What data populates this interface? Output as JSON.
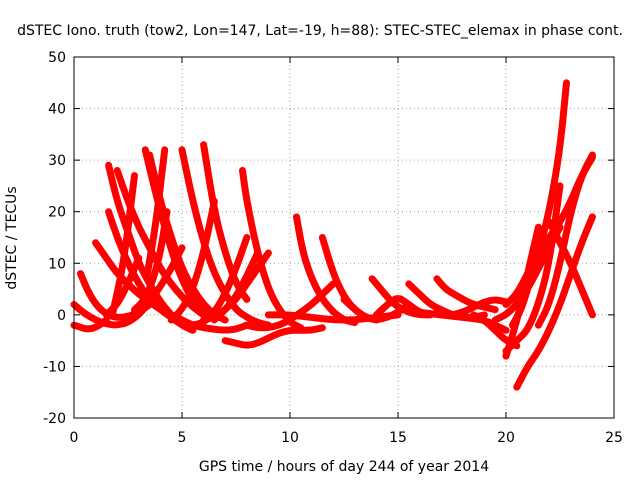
{
  "chart_data": {
    "type": "scatter",
    "title": "dSTEC Iono. truth (tow2, Lon=147, Lat=-19, h=88): STEC-STEC_elemax in phase cont.",
    "xlabel": "GPS time / hours of day 244 of year 2014",
    "ylabel": "dSTEC  / TECUs",
    "xlim": [
      0,
      25
    ],
    "ylim": [
      -20,
      50
    ],
    "xticks": [
      0,
      5,
      10,
      15,
      20,
      25
    ],
    "yticks": [
      -20,
      -10,
      0,
      10,
      20,
      30,
      40,
      50
    ],
    "grid": true,
    "legend": "none",
    "marker": "+",
    "color": "#ff0000",
    "series": [
      {
        "x": [
          0.0,
          0.5,
          1.0,
          1.5,
          2.0,
          2.5,
          3.0,
          3.5,
          4.0,
          4.5,
          5.0
        ],
        "y": [
          2.0,
          0.2,
          -1.0,
          -1.8,
          -2.0,
          -1.5,
          0.0,
          2.5,
          5.5,
          9.0,
          13.0
        ]
      },
      {
        "x": [
          0.0,
          0.3,
          0.6,
          1.0,
          1.5
        ],
        "y": [
          -2.0,
          -2.4,
          -2.8,
          -2.5,
          -1.0
        ]
      },
      {
        "x": [
          0.3,
          0.7,
          1.2,
          1.8,
          2.4,
          3.0,
          3.5
        ],
        "y": [
          8.0,
          4.0,
          1.0,
          -0.5,
          -0.5,
          0.5,
          2.0
        ]
      },
      {
        "x": [
          1.0,
          1.5,
          2.0,
          2.5,
          3.0,
          3.5,
          4.0,
          4.5,
          5.0
        ],
        "y": [
          14.0,
          11.0,
          8.0,
          6.0,
          4.0,
          2.5,
          1.0,
          0.0,
          -1.0
        ]
      },
      {
        "x": [
          1.6,
          2.0,
          2.5,
          3.0,
          3.5,
          4.0,
          4.5,
          5.0,
          5.5
        ],
        "y": [
          20.0,
          15.0,
          10.0,
          6.0,
          3.0,
          1.0,
          -0.5,
          -2.0,
          -3.0
        ]
      },
      {
        "x": [
          1.6,
          2.0,
          2.5,
          3.0,
          3.5,
          4.0,
          4.5
        ],
        "y": [
          29.0,
          22.0,
          16.0,
          10.0,
          6.0,
          2.5,
          0.0
        ]
      },
      {
        "x": [
          2.0,
          2.5,
          3.0,
          3.5,
          4.0,
          4.5,
          5.0,
          5.5,
          6.0
        ],
        "y": [
          28.0,
          22.0,
          17.0,
          13.0,
          9.0,
          6.0,
          3.5,
          1.5,
          0.0
        ]
      },
      {
        "x": [
          1.5,
          2.0,
          2.5,
          3.0
        ],
        "y": [
          0.0,
          2.0,
          6.0,
          11.0
        ]
      },
      {
        "x": [
          1.8,
          2.3,
          2.8
        ],
        "y": [
          0.5,
          10.0,
          27.0
        ]
      },
      {
        "x": [
          3.3,
          3.7,
          4.2,
          4.7,
          5.2,
          5.7,
          6.2
        ],
        "y": [
          32.0,
          25.0,
          17.0,
          10.0,
          5.0,
          1.5,
          -0.5
        ]
      },
      {
        "x": [
          3.5,
          4.0,
          4.5,
          5.0,
          5.5,
          6.0,
          6.5,
          7.0
        ],
        "y": [
          31.0,
          22.0,
          15.0,
          9.0,
          5.0,
          2.0,
          0.0,
          -1.0
        ]
      },
      {
        "x": [
          3.4,
          3.8,
          4.2
        ],
        "y": [
          8.0,
          18.0,
          32.0
        ]
      },
      {
        "x": [
          2.8,
          3.2,
          3.6,
          4.0,
          4.3
        ],
        "y": [
          1.0,
          2.5,
          6.0,
          12.0,
          20.0
        ]
      },
      {
        "x": [
          4.5,
          5.0,
          5.5,
          6.0,
          6.5
        ],
        "y": [
          -1.0,
          1.0,
          5.0,
          12.0,
          22.0
        ]
      },
      {
        "x": [
          5.0,
          5.5,
          6.0,
          6.5,
          7.0,
          7.5,
          8.0,
          8.5,
          9.0
        ],
        "y": [
          32.0,
          22.0,
          14.0,
          8.0,
          4.0,
          1.0,
          -0.5,
          -1.5,
          -2.0
        ]
      },
      {
        "x": [
          6.0,
          6.5,
          7.0,
          7.5,
          8.0
        ],
        "y": [
          33.0,
          20.0,
          12.0,
          6.0,
          3.0
        ]
      },
      {
        "x": [
          4.5,
          5.0,
          5.5,
          6.0,
          6.5,
          7.0,
          7.5,
          8.0
        ],
        "y": [
          0.0,
          -1.0,
          -2.0,
          -2.5,
          -2.8,
          -3.0,
          -2.8,
          -2.0
        ]
      },
      {
        "x": [
          5.5,
          6.0,
          6.5,
          7.0,
          7.5,
          8.0
        ],
        "y": [
          -2.0,
          -1.5,
          0.5,
          4.0,
          9.0,
          15.0
        ]
      },
      {
        "x": [
          6.0,
          6.5,
          7.0,
          7.5,
          8.0,
          8.5,
          9.0
        ],
        "y": [
          -1.0,
          -0.5,
          1.0,
          3.0,
          6.0,
          9.0,
          12.0
        ]
      },
      {
        "x": [
          7.8,
          8.0,
          8.5,
          9.0,
          9.5,
          10.0,
          10.5
        ],
        "y": [
          28.0,
          22.0,
          12.0,
          5.0,
          1.0,
          -1.5,
          -2.5
        ]
      },
      {
        "x": [
          7.0,
          7.5,
          8.0,
          8.5,
          9.0,
          9.5,
          10.0,
          10.5,
          11.0,
          11.5
        ],
        "y": [
          -5.0,
          -5.5,
          -6.0,
          -5.5,
          -4.5,
          -3.5,
          -3.0,
          -3.0,
          -3.0,
          -2.5
        ]
      },
      {
        "x": [
          6.5,
          7.0,
          7.5,
          8.0,
          8.5
        ],
        "y": [
          -1.0,
          1.0,
          3.5,
          7.5,
          12.0
        ]
      },
      {
        "x": [
          10.3,
          10.6,
          11.0,
          11.5,
          12.0,
          12.5,
          13.0
        ],
        "y": [
          19.0,
          12.0,
          7.0,
          3.0,
          0.5,
          -1.0,
          -1.5
        ]
      },
      {
        "x": [
          11.5,
          12.0,
          12.5,
          13.0,
          13.5,
          14.0
        ],
        "y": [
          15.0,
          8.0,
          3.5,
          1.0,
          -0.5,
          -1.0
        ]
      },
      {
        "x": [
          8.0,
          8.5,
          9.0,
          9.5,
          10.0,
          10.5,
          11.0,
          11.5,
          12.0
        ],
        "y": [
          -2.0,
          -2.5,
          -2.5,
          -2.0,
          -1.0,
          0.5,
          2.0,
          4.0,
          6.0
        ]
      },
      {
        "x": [
          9.0,
          10.0,
          11.0,
          12.0,
          13.0,
          14.0,
          15.0
        ],
        "y": [
          0.0,
          0.0,
          -0.5,
          -1.0,
          -1.0,
          -0.5,
          0.0
        ]
      },
      {
        "x": [
          12.5,
          13.0,
          13.5,
          14.0,
          14.5,
          15.0,
          15.5
        ],
        "y": [
          3.0,
          1.0,
          -0.5,
          -1.0,
          -0.5,
          0.5,
          2.0
        ]
      },
      {
        "x": [
          13.8,
          14.2,
          14.6,
          15.0,
          15.5,
          16.0,
          16.5
        ],
        "y": [
          7.0,
          5.0,
          3.0,
          1.5,
          0.5,
          0.0,
          0.0
        ]
      },
      {
        "x": [
          15.5,
          16.0,
          16.5,
          17.0,
          17.5,
          18.0,
          18.5,
          19.0
        ],
        "y": [
          6.0,
          4.0,
          2.0,
          1.0,
          0.0,
          -0.5,
          -0.5,
          0.0
        ]
      },
      {
        "x": [
          16.8,
          17.2,
          17.6,
          18.0,
          18.5,
          19.0,
          19.5
        ],
        "y": [
          7.0,
          5.0,
          4.0,
          3.0,
          2.0,
          1.5,
          1.0
        ]
      },
      {
        "x": [
          14.0,
          14.5,
          15.0,
          15.5,
          16.0,
          16.5,
          17.0
        ],
        "y": [
          0.0,
          2.0,
          3.5,
          2.0,
          0.5,
          0.0,
          0.5
        ]
      },
      {
        "x": [
          16.0,
          17.0,
          18.0,
          19.0,
          19.5,
          20.0
        ],
        "y": [
          0.5,
          0.0,
          -0.5,
          -1.0,
          -2.0,
          -3.0
        ]
      },
      {
        "x": [
          17.5,
          18.0,
          18.5,
          19.0,
          19.5,
          20.0
        ],
        "y": [
          0.0,
          0.5,
          1.5,
          2.5,
          3.0,
          2.5
        ]
      },
      {
        "x": [
          18.5,
          19.0,
          19.5,
          20.0,
          20.5
        ],
        "y": [
          0.0,
          -1.0,
          -3.0,
          -5.0,
          -6.0
        ]
      },
      {
        "x": [
          20.0,
          20.3,
          20.7,
          21.0,
          21.5
        ],
        "y": [
          -8.0,
          -4.0,
          2.0,
          8.0,
          17.0
        ]
      },
      {
        "x": [
          20.3,
          20.7,
          21.0,
          21.5,
          22.0,
          22.5,
          22.8
        ],
        "y": [
          -2.0,
          1.0,
          5.0,
          12.0,
          20.0,
          32.0,
          45.0
        ]
      },
      {
        "x": [
          20.5,
          21.0,
          21.5,
          22.0,
          22.5,
          23.0,
          23.5,
          24.0
        ],
        "y": [
          -14.0,
          -10.0,
          -7.0,
          -3.0,
          2.0,
          8.0,
          14.0,
          19.0
        ]
      },
      {
        "x": [
          20.0,
          20.5,
          21.0,
          21.5,
          22.0,
          22.5
        ],
        "y": [
          -7.0,
          -5.0,
          -3.0,
          2.0,
          10.0,
          25.0
        ]
      },
      {
        "x": [
          21.5,
          22.0,
          22.5,
          23.0,
          23.5,
          24.0
        ],
        "y": [
          -2.0,
          2.0,
          10.0,
          20.0,
          27.0,
          31.0
        ]
      },
      {
        "x": [
          20.0,
          20.5,
          21.0,
          21.5,
          22.0,
          22.5,
          23.0,
          23.5,
          24.0
        ],
        "y": [
          2.0,
          4.0,
          8.0,
          12.0,
          15.0,
          18.0,
          22.0,
          27.0,
          30.5
        ]
      },
      {
        "x": [
          22.0,
          22.5,
          23.0,
          23.5,
          24.0
        ],
        "y": [
          18.0,
          14.0,
          10.0,
          5.0,
          0.0
        ]
      },
      {
        "x": [
          19.5,
          20.0,
          20.5,
          21.0,
          21.5,
          22.0,
          22.5
        ],
        "y": [
          -1.0,
          0.0,
          2.0,
          5.0,
          9.0,
          13.0,
          17.0
        ]
      }
    ]
  }
}
